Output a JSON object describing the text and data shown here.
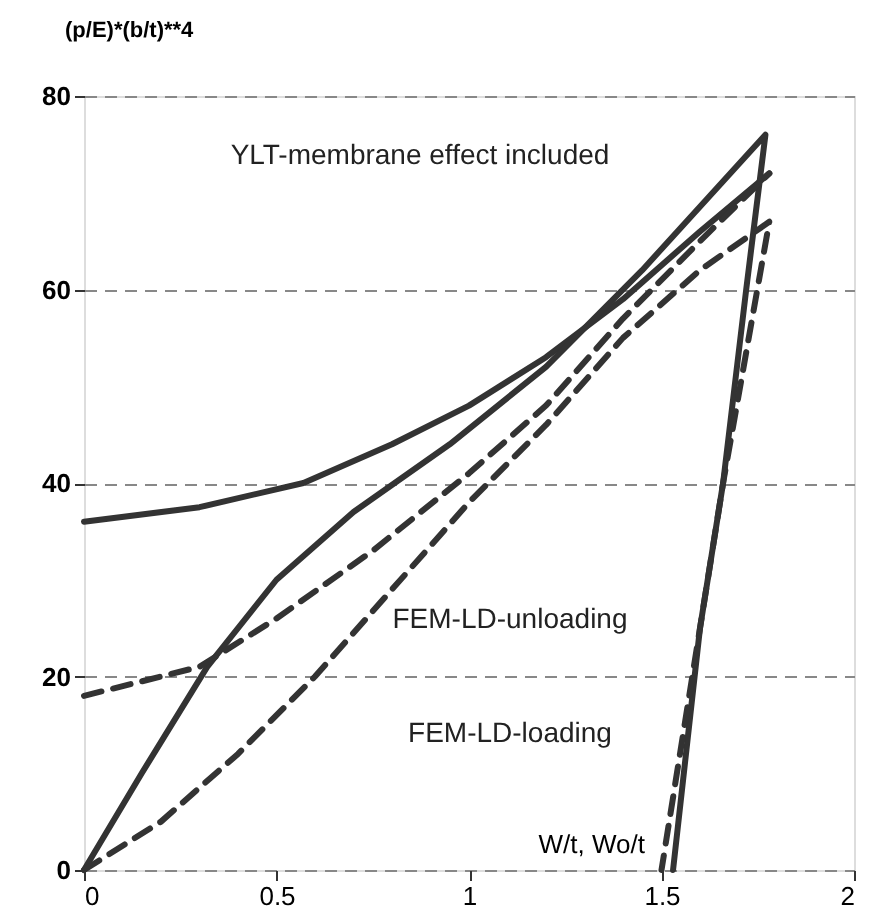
{
  "chart_data": {
    "type": "line",
    "xlabel": "W/t, Wo/t",
    "ylabel": "(p/E)*(b/t)**4",
    "xlim": [
      0,
      2
    ],
    "ylim": [
      0,
      80
    ],
    "xticks": [
      0,
      0.5,
      1,
      1.5,
      2
    ],
    "yticks": [
      0,
      20,
      40,
      60,
      80
    ],
    "grid": "y",
    "series": [
      {
        "color": "#333333",
        "line_style": "solid",
        "x": [
          0,
          0.3,
          0.57,
          0.8,
          1.0,
          1.2,
          1.4,
          1.6,
          1.78
        ],
        "values": [
          36,
          37.5,
          40,
          44,
          48,
          53,
          59,
          66,
          72
        ]
      },
      {
        "color": "#333333",
        "line_style": "solid",
        "x": [
          0,
          0.15,
          0.32,
          0.5,
          0.7,
          0.95,
          1.2,
          1.45,
          1.77,
          1.72,
          1.66,
          1.6,
          1.53
        ],
        "values": [
          0,
          10,
          21,
          30,
          37,
          44,
          52,
          62,
          76,
          60,
          40,
          25,
          0
        ]
      },
      {
        "color": "#333333",
        "line_style": "dashed",
        "x": [
          0,
          0.3,
          0.5,
          0.75,
          1.0,
          1.2,
          1.4,
          1.6,
          1.78
        ],
        "values": [
          18,
          21,
          26,
          33,
          41,
          48,
          57,
          65,
          72
        ]
      },
      {
        "color": "#333333",
        "line_style": "dashed",
        "x": [
          0,
          0.2,
          0.4,
          0.6,
          0.8,
          1.0,
          1.2,
          1.4,
          1.6,
          1.78,
          1.66,
          1.58,
          1.5
        ],
        "values": [
          0,
          5,
          12,
          20,
          29,
          38,
          46,
          55,
          62,
          67,
          40,
          20,
          0
        ]
      }
    ],
    "annotations": [
      "YLT-membrane effect included",
      "FEM-LD-unloading",
      "FEM-LD-loading"
    ]
  }
}
